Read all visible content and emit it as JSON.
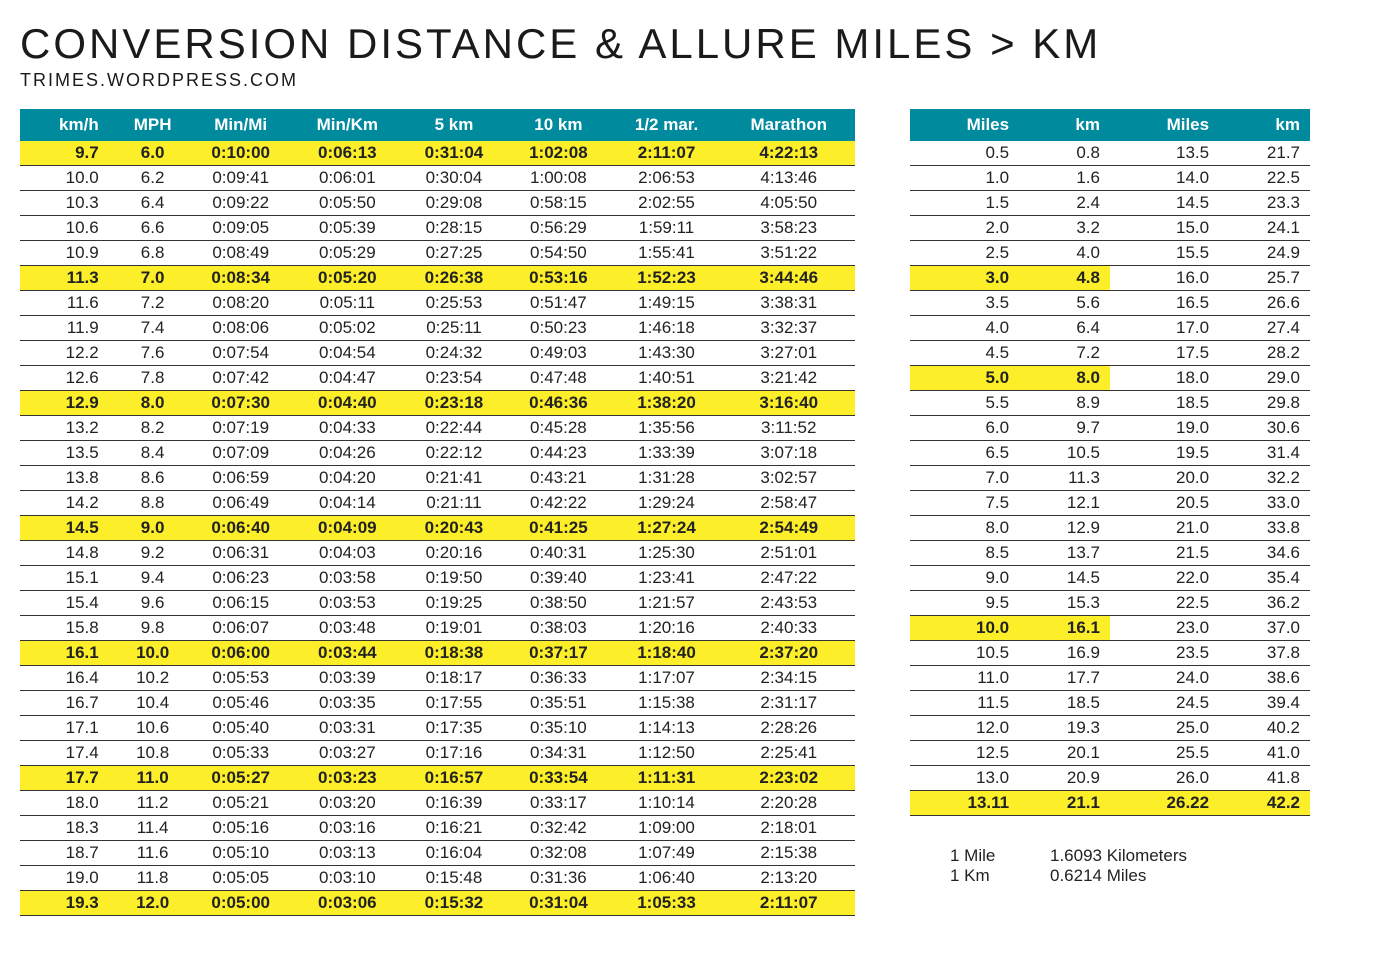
{
  "header": {
    "title": "CONVERSION DISTANCE & ALLURE MILES > KM",
    "subtitle": "TRIMES.WORDPRESS.COM"
  },
  "colors": {
    "header_bg": "#008a9e",
    "header_fg": "#ffffff",
    "highlight_bg": "#fcef29",
    "row_border": "#333333",
    "page_bg": "#ffffff"
  },
  "typography": {
    "title_fontsize": 42,
    "title_letter_spacing": 3,
    "subtitle_fontsize": 18,
    "body_fontsize": 17
  },
  "pace_table": {
    "columns": [
      "km/h",
      "MPH",
      "Min/Mi",
      "Min/Km",
      "5 km",
      "10 km",
      "1/2 mar.",
      "Marathon"
    ],
    "rows": [
      {
        "hl": true,
        "c": [
          "9.7",
          "6.0",
          "0:10:00",
          "0:06:13",
          "0:31:04",
          "1:02:08",
          "2:11:07",
          "4:22:13"
        ]
      },
      {
        "hl": false,
        "c": [
          "10.0",
          "6.2",
          "0:09:41",
          "0:06:01",
          "0:30:04",
          "1:00:08",
          "2:06:53",
          "4:13:46"
        ]
      },
      {
        "hl": false,
        "c": [
          "10.3",
          "6.4",
          "0:09:22",
          "0:05:50",
          "0:29:08",
          "0:58:15",
          "2:02:55",
          "4:05:50"
        ]
      },
      {
        "hl": false,
        "c": [
          "10.6",
          "6.6",
          "0:09:05",
          "0:05:39",
          "0:28:15",
          "0:56:29",
          "1:59:11",
          "3:58:23"
        ]
      },
      {
        "hl": false,
        "c": [
          "10.9",
          "6.8",
          "0:08:49",
          "0:05:29",
          "0:27:25",
          "0:54:50",
          "1:55:41",
          "3:51:22"
        ]
      },
      {
        "hl": true,
        "c": [
          "11.3",
          "7.0",
          "0:08:34",
          "0:05:20",
          "0:26:38",
          "0:53:16",
          "1:52:23",
          "3:44:46"
        ]
      },
      {
        "hl": false,
        "c": [
          "11.6",
          "7.2",
          "0:08:20",
          "0:05:11",
          "0:25:53",
          "0:51:47",
          "1:49:15",
          "3:38:31"
        ]
      },
      {
        "hl": false,
        "c": [
          "11.9",
          "7.4",
          "0:08:06",
          "0:05:02",
          "0:25:11",
          "0:50:23",
          "1:46:18",
          "3:32:37"
        ]
      },
      {
        "hl": false,
        "c": [
          "12.2",
          "7.6",
          "0:07:54",
          "0:04:54",
          "0:24:32",
          "0:49:03",
          "1:43:30",
          "3:27:01"
        ]
      },
      {
        "hl": false,
        "c": [
          "12.6",
          "7.8",
          "0:07:42",
          "0:04:47",
          "0:23:54",
          "0:47:48",
          "1:40:51",
          "3:21:42"
        ]
      },
      {
        "hl": true,
        "c": [
          "12.9",
          "8.0",
          "0:07:30",
          "0:04:40",
          "0:23:18",
          "0:46:36",
          "1:38:20",
          "3:16:40"
        ]
      },
      {
        "hl": false,
        "c": [
          "13.2",
          "8.2",
          "0:07:19",
          "0:04:33",
          "0:22:44",
          "0:45:28",
          "1:35:56",
          "3:11:52"
        ]
      },
      {
        "hl": false,
        "c": [
          "13.5",
          "8.4",
          "0:07:09",
          "0:04:26",
          "0:22:12",
          "0:44:23",
          "1:33:39",
          "3:07:18"
        ]
      },
      {
        "hl": false,
        "c": [
          "13.8",
          "8.6",
          "0:06:59",
          "0:04:20",
          "0:21:41",
          "0:43:21",
          "1:31:28",
          "3:02:57"
        ]
      },
      {
        "hl": false,
        "c": [
          "14.2",
          "8.8",
          "0:06:49",
          "0:04:14",
          "0:21:11",
          "0:42:22",
          "1:29:24",
          "2:58:47"
        ]
      },
      {
        "hl": true,
        "c": [
          "14.5",
          "9.0",
          "0:06:40",
          "0:04:09",
          "0:20:43",
          "0:41:25",
          "1:27:24",
          "2:54:49"
        ]
      },
      {
        "hl": false,
        "c": [
          "14.8",
          "9.2",
          "0:06:31",
          "0:04:03",
          "0:20:16",
          "0:40:31",
          "1:25:30",
          "2:51:01"
        ]
      },
      {
        "hl": false,
        "c": [
          "15.1",
          "9.4",
          "0:06:23",
          "0:03:58",
          "0:19:50",
          "0:39:40",
          "1:23:41",
          "2:47:22"
        ]
      },
      {
        "hl": false,
        "c": [
          "15.4",
          "9.6",
          "0:06:15",
          "0:03:53",
          "0:19:25",
          "0:38:50",
          "1:21:57",
          "2:43:53"
        ]
      },
      {
        "hl": false,
        "c": [
          "15.8",
          "9.8",
          "0:06:07",
          "0:03:48",
          "0:19:01",
          "0:38:03",
          "1:20:16",
          "2:40:33"
        ]
      },
      {
        "hl": true,
        "c": [
          "16.1",
          "10.0",
          "0:06:00",
          "0:03:44",
          "0:18:38",
          "0:37:17",
          "1:18:40",
          "2:37:20"
        ]
      },
      {
        "hl": false,
        "c": [
          "16.4",
          "10.2",
          "0:05:53",
          "0:03:39",
          "0:18:17",
          "0:36:33",
          "1:17:07",
          "2:34:15"
        ]
      },
      {
        "hl": false,
        "c": [
          "16.7",
          "10.4",
          "0:05:46",
          "0:03:35",
          "0:17:55",
          "0:35:51",
          "1:15:38",
          "2:31:17"
        ]
      },
      {
        "hl": false,
        "c": [
          "17.1",
          "10.6",
          "0:05:40",
          "0:03:31",
          "0:17:35",
          "0:35:10",
          "1:14:13",
          "2:28:26"
        ]
      },
      {
        "hl": false,
        "c": [
          "17.4",
          "10.8",
          "0:05:33",
          "0:03:27",
          "0:17:16",
          "0:34:31",
          "1:12:50",
          "2:25:41"
        ]
      },
      {
        "hl": true,
        "c": [
          "17.7",
          "11.0",
          "0:05:27",
          "0:03:23",
          "0:16:57",
          "0:33:54",
          "1:11:31",
          "2:23:02"
        ]
      },
      {
        "hl": false,
        "c": [
          "18.0",
          "11.2",
          "0:05:21",
          "0:03:20",
          "0:16:39",
          "0:33:17",
          "1:10:14",
          "2:20:28"
        ]
      },
      {
        "hl": false,
        "c": [
          "18.3",
          "11.4",
          "0:05:16",
          "0:03:16",
          "0:16:21",
          "0:32:42",
          "1:09:00",
          "2:18:01"
        ]
      },
      {
        "hl": false,
        "c": [
          "18.7",
          "11.6",
          "0:05:10",
          "0:03:13",
          "0:16:04",
          "0:32:08",
          "1:07:49",
          "2:15:38"
        ]
      },
      {
        "hl": false,
        "c": [
          "19.0",
          "11.8",
          "0:05:05",
          "0:03:10",
          "0:15:48",
          "0:31:36",
          "1:06:40",
          "2:13:20"
        ]
      },
      {
        "hl": true,
        "c": [
          "19.3",
          "12.0",
          "0:05:00",
          "0:03:06",
          "0:15:32",
          "0:31:04",
          "1:05:33",
          "2:11:07"
        ]
      }
    ]
  },
  "dist_table": {
    "columns": [
      "Miles",
      "km",
      "Miles",
      "km"
    ],
    "rows": [
      {
        "hl_left": false,
        "hl_right": false,
        "c": [
          "0.5",
          "0.8",
          "13.5",
          "21.7"
        ]
      },
      {
        "hl_left": false,
        "hl_right": false,
        "c": [
          "1.0",
          "1.6",
          "14.0",
          "22.5"
        ]
      },
      {
        "hl_left": false,
        "hl_right": false,
        "c": [
          "1.5",
          "2.4",
          "14.5",
          "23.3"
        ]
      },
      {
        "hl_left": false,
        "hl_right": false,
        "c": [
          "2.0",
          "3.2",
          "15.0",
          "24.1"
        ]
      },
      {
        "hl_left": false,
        "hl_right": false,
        "c": [
          "2.5",
          "4.0",
          "15.5",
          "24.9"
        ]
      },
      {
        "hl_left": true,
        "hl_right": false,
        "c": [
          "3.0",
          "4.8",
          "16.0",
          "25.7"
        ]
      },
      {
        "hl_left": false,
        "hl_right": false,
        "c": [
          "3.5",
          "5.6",
          "16.5",
          "26.6"
        ]
      },
      {
        "hl_left": false,
        "hl_right": false,
        "c": [
          "4.0",
          "6.4",
          "17.0",
          "27.4"
        ]
      },
      {
        "hl_left": false,
        "hl_right": false,
        "c": [
          "4.5",
          "7.2",
          "17.5",
          "28.2"
        ]
      },
      {
        "hl_left": true,
        "hl_right": false,
        "c": [
          "5.0",
          "8.0",
          "18.0",
          "29.0"
        ]
      },
      {
        "hl_left": false,
        "hl_right": false,
        "c": [
          "5.5",
          "8.9",
          "18.5",
          "29.8"
        ]
      },
      {
        "hl_left": false,
        "hl_right": false,
        "c": [
          "6.0",
          "9.7",
          "19.0",
          "30.6"
        ]
      },
      {
        "hl_left": false,
        "hl_right": false,
        "c": [
          "6.5",
          "10.5",
          "19.5",
          "31.4"
        ]
      },
      {
        "hl_left": false,
        "hl_right": false,
        "c": [
          "7.0",
          "11.3",
          "20.0",
          "32.2"
        ]
      },
      {
        "hl_left": false,
        "hl_right": false,
        "c": [
          "7.5",
          "12.1",
          "20.5",
          "33.0"
        ]
      },
      {
        "hl_left": false,
        "hl_right": false,
        "c": [
          "8.0",
          "12.9",
          "21.0",
          "33.8"
        ]
      },
      {
        "hl_left": false,
        "hl_right": false,
        "c": [
          "8.5",
          "13.7",
          "21.5",
          "34.6"
        ]
      },
      {
        "hl_left": false,
        "hl_right": false,
        "c": [
          "9.0",
          "14.5",
          "22.0",
          "35.4"
        ]
      },
      {
        "hl_left": false,
        "hl_right": false,
        "c": [
          "9.5",
          "15.3",
          "22.5",
          "36.2"
        ]
      },
      {
        "hl_left": true,
        "hl_right": false,
        "c": [
          "10.0",
          "16.1",
          "23.0",
          "37.0"
        ]
      },
      {
        "hl_left": false,
        "hl_right": false,
        "c": [
          "10.5",
          "16.9",
          "23.5",
          "37.8"
        ]
      },
      {
        "hl_left": false,
        "hl_right": false,
        "c": [
          "11.0",
          "17.7",
          "24.0",
          "38.6"
        ]
      },
      {
        "hl_left": false,
        "hl_right": false,
        "c": [
          "11.5",
          "18.5",
          "24.5",
          "39.4"
        ]
      },
      {
        "hl_left": false,
        "hl_right": false,
        "c": [
          "12.0",
          "19.3",
          "25.0",
          "40.2"
        ]
      },
      {
        "hl_left": false,
        "hl_right": false,
        "c": [
          "12.5",
          "20.1",
          "25.5",
          "41.0"
        ]
      },
      {
        "hl_left": false,
        "hl_right": false,
        "c": [
          "13.0",
          "20.9",
          "26.0",
          "41.8"
        ]
      },
      {
        "hl_left": true,
        "hl_right": true,
        "c": [
          "13.11",
          "21.1",
          "26.22",
          "42.2"
        ]
      }
    ]
  },
  "footnote": {
    "line1_k": "1 Mile",
    "line1_v": "1.6093 Kilometers",
    "line2_k": "1 Km",
    "line2_v": "0.6214 Miles"
  }
}
